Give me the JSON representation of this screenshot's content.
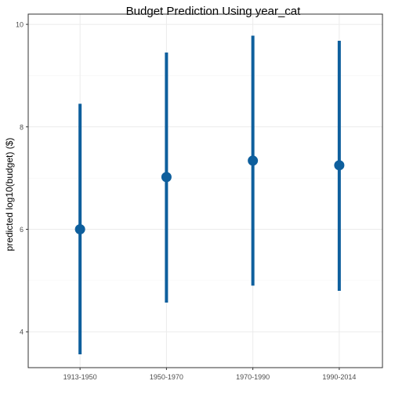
{
  "chart_data": {
    "type": "errorbar",
    "title": "Budget Prediction Using year_cat",
    "xlabel": "",
    "ylabel": "predicted log10(budget) ($)",
    "categories": [
      "1913-1950",
      "1950-1970",
      "1970-1990",
      "1990-2014"
    ],
    "series": [
      {
        "estimate": [
          6.0,
          7.02,
          7.34,
          7.25
        ],
        "lower": [
          3.56,
          4.57,
          4.9,
          4.8
        ],
        "upper": [
          8.45,
          9.45,
          9.78,
          9.68
        ]
      }
    ],
    "yticks": [
      4,
      6,
      8,
      10
    ],
    "ylim": [
      3.3,
      10.2
    ],
    "grid": true,
    "legend": "none",
    "colors": {
      "series": "#0e5f9d",
      "grid": "#ebebeb",
      "panel_border": "#333333",
      "text": "#1a1a1a"
    }
  }
}
